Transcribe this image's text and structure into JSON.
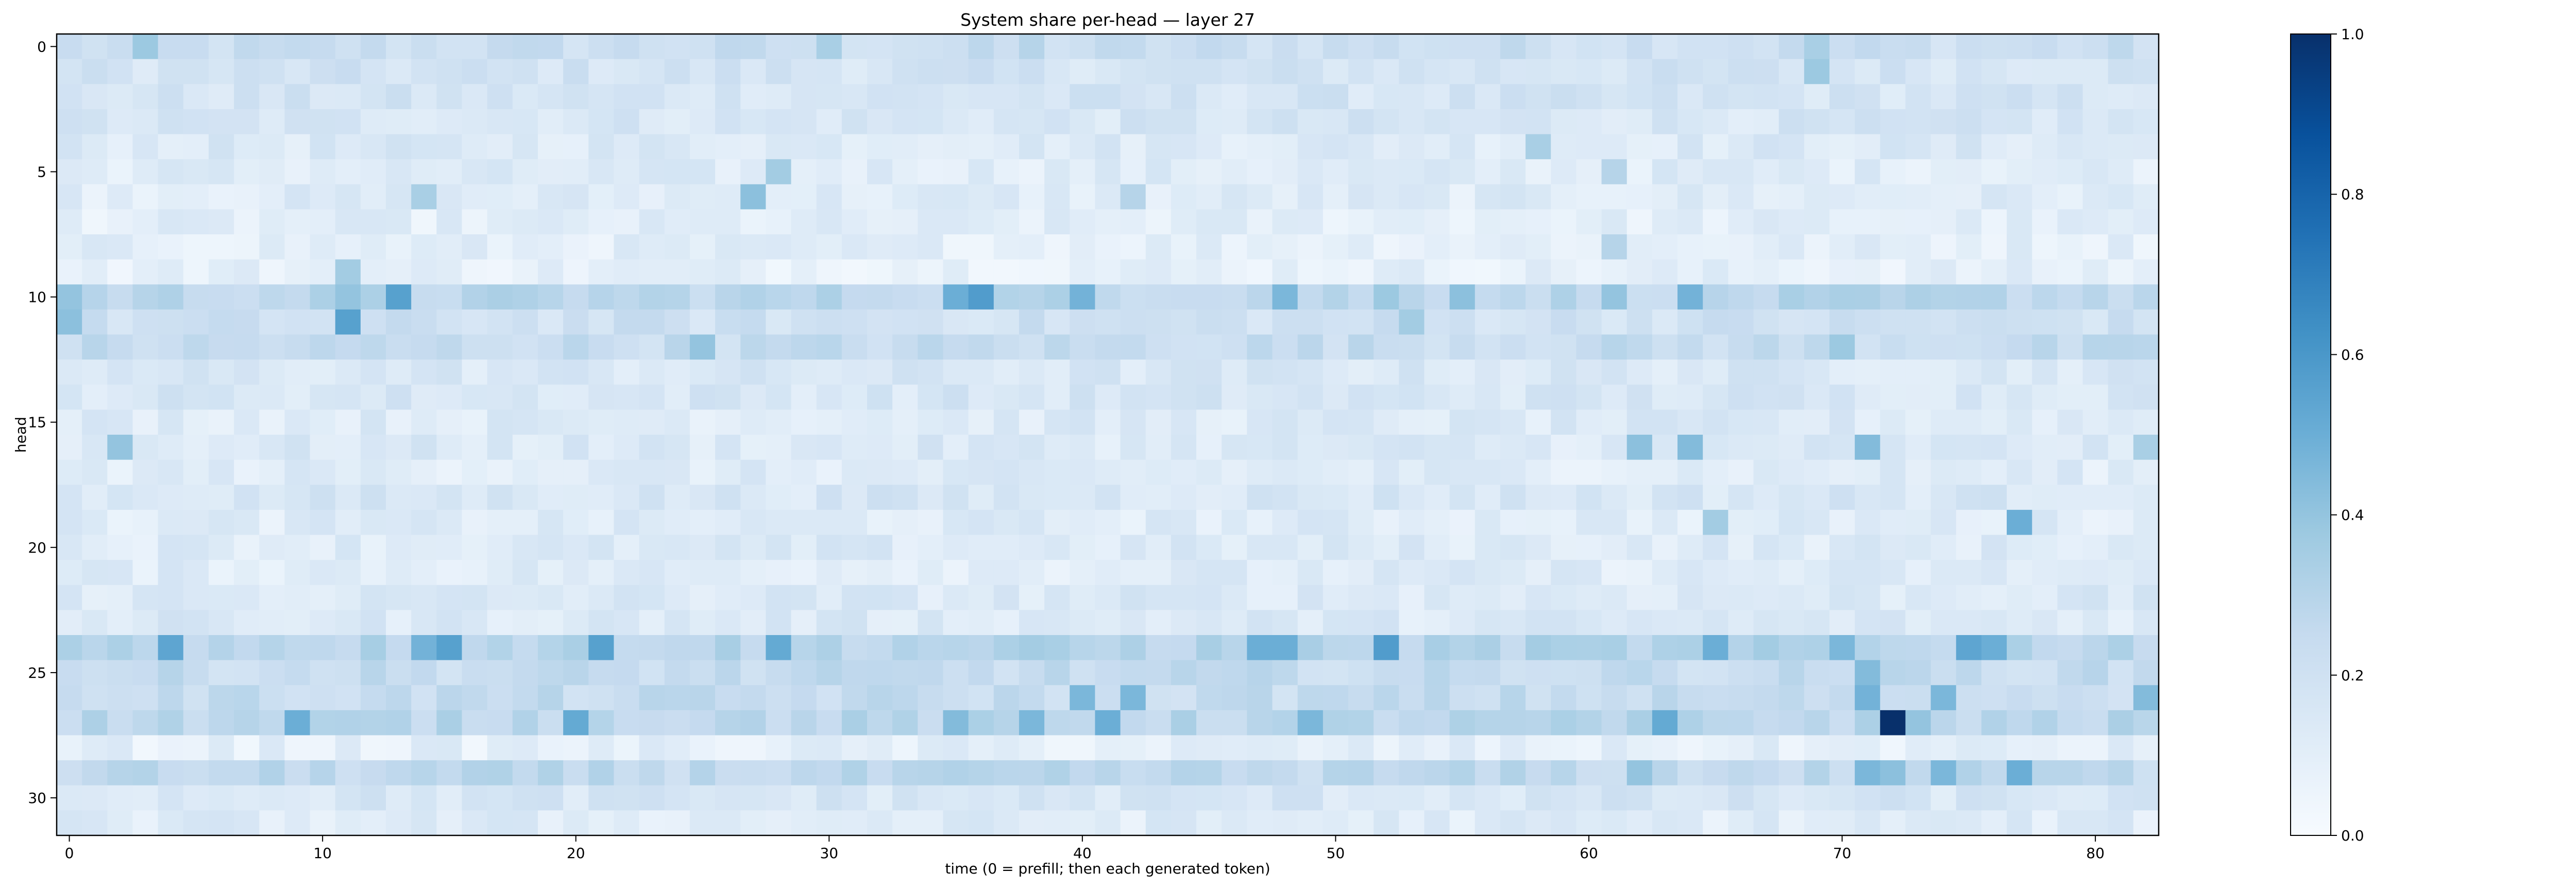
{
  "chart_data": {
    "type": "heatmap",
    "title": "System share per-head — layer 27",
    "xlabel": "time (0 = prefill; then each generated token)",
    "ylabel": "head",
    "n_cols": 83,
    "n_rows": 32,
    "x_ticks": [
      0,
      10,
      20,
      30,
      40,
      50,
      60,
      70,
      80
    ],
    "y_ticks": [
      0,
      5,
      10,
      15,
      20,
      25,
      30
    ],
    "colorbar": {
      "min": 0.0,
      "max": 1.0,
      "ticks": [
        "0.0",
        "0.2",
        "0.4",
        "0.6",
        "0.8",
        "1.0"
      ]
    },
    "colormap": "Blues",
    "row_base": [
      0.22,
      0.18,
      0.17,
      0.16,
      0.14,
      0.12,
      0.12,
      0.1,
      0.1,
      0.09,
      0.28,
      0.2,
      0.24,
      0.15,
      0.16,
      0.13,
      0.14,
      0.12,
      0.16,
      0.12,
      0.13,
      0.12,
      0.14,
      0.14,
      0.3,
      0.24,
      0.24,
      0.28,
      0.09,
      0.26,
      0.16,
      0.12
    ],
    "highlights": [
      {
        "row": 0,
        "col": 3,
        "v": 0.38
      },
      {
        "row": 0,
        "col": 30,
        "v": 0.34
      },
      {
        "row": 0,
        "col": 38,
        "v": 0.3
      },
      {
        "row": 0,
        "col": 69,
        "v": 0.34
      },
      {
        "row": 1,
        "col": 69,
        "v": 0.38
      },
      {
        "row": 4,
        "col": 58,
        "v": 0.34
      },
      {
        "row": 5,
        "col": 28,
        "v": 0.36
      },
      {
        "row": 5,
        "col": 61,
        "v": 0.3
      },
      {
        "row": 6,
        "col": 14,
        "v": 0.34
      },
      {
        "row": 6,
        "col": 27,
        "v": 0.42
      },
      {
        "row": 6,
        "col": 42,
        "v": 0.3
      },
      {
        "row": 8,
        "col": 61,
        "v": 0.3
      },
      {
        "row": 9,
        "col": 11,
        "v": 0.36
      },
      {
        "row": 10,
        "col": 0,
        "v": 0.4
      },
      {
        "row": 10,
        "col": 11,
        "v": 0.4
      },
      {
        "row": 10,
        "col": 13,
        "v": 0.56
      },
      {
        "row": 10,
        "col": 35,
        "v": 0.5
      },
      {
        "row": 10,
        "col": 36,
        "v": 0.58
      },
      {
        "row": 10,
        "col": 40,
        "v": 0.48
      },
      {
        "row": 10,
        "col": 48,
        "v": 0.46
      },
      {
        "row": 10,
        "col": 52,
        "v": 0.38
      },
      {
        "row": 10,
        "col": 55,
        "v": 0.42
      },
      {
        "row": 10,
        "col": 61,
        "v": 0.4
      },
      {
        "row": 10,
        "col": 64,
        "v": 0.48
      },
      {
        "row": 11,
        "col": 0,
        "v": 0.42
      },
      {
        "row": 11,
        "col": 11,
        "v": 0.56
      },
      {
        "row": 11,
        "col": 53,
        "v": 0.36
      },
      {
        "row": 12,
        "col": 25,
        "v": 0.4
      },
      {
        "row": 12,
        "col": 70,
        "v": 0.38
      },
      {
        "row": 16,
        "col": 2,
        "v": 0.4
      },
      {
        "row": 16,
        "col": 62,
        "v": 0.42
      },
      {
        "row": 16,
        "col": 64,
        "v": 0.44
      },
      {
        "row": 16,
        "col": 71,
        "v": 0.44
      },
      {
        "row": 16,
        "col": 82,
        "v": 0.34
      },
      {
        "row": 19,
        "col": 65,
        "v": 0.36
      },
      {
        "row": 19,
        "col": 77,
        "v": 0.5
      },
      {
        "row": 24,
        "col": 4,
        "v": 0.54
      },
      {
        "row": 24,
        "col": 14,
        "v": 0.48
      },
      {
        "row": 24,
        "col": 15,
        "v": 0.56
      },
      {
        "row": 24,
        "col": 21,
        "v": 0.56
      },
      {
        "row": 24,
        "col": 28,
        "v": 0.52
      },
      {
        "row": 24,
        "col": 47,
        "v": 0.5
      },
      {
        "row": 24,
        "col": 48,
        "v": 0.5
      },
      {
        "row": 24,
        "col": 52,
        "v": 0.58
      },
      {
        "row": 24,
        "col": 65,
        "v": 0.5
      },
      {
        "row": 24,
        "col": 70,
        "v": 0.46
      },
      {
        "row": 24,
        "col": 75,
        "v": 0.54
      },
      {
        "row": 24,
        "col": 76,
        "v": 0.5
      },
      {
        "row": 25,
        "col": 71,
        "v": 0.44
      },
      {
        "row": 26,
        "col": 40,
        "v": 0.46
      },
      {
        "row": 26,
        "col": 42,
        "v": 0.46
      },
      {
        "row": 26,
        "col": 71,
        "v": 0.48
      },
      {
        "row": 26,
        "col": 74,
        "v": 0.46
      },
      {
        "row": 26,
        "col": 82,
        "v": 0.44
      },
      {
        "row": 27,
        "col": 9,
        "v": 0.5
      },
      {
        "row": 27,
        "col": 20,
        "v": 0.52
      },
      {
        "row": 27,
        "col": 35,
        "v": 0.44
      },
      {
        "row": 27,
        "col": 38,
        "v": 0.46
      },
      {
        "row": 27,
        "col": 41,
        "v": 0.5
      },
      {
        "row": 27,
        "col": 49,
        "v": 0.46
      },
      {
        "row": 27,
        "col": 63,
        "v": 0.52
      },
      {
        "row": 27,
        "col": 72,
        "v": 1.0
      },
      {
        "row": 27,
        "col": 73,
        "v": 0.4
      },
      {
        "row": 29,
        "col": 62,
        "v": 0.4
      },
      {
        "row": 29,
        "col": 71,
        "v": 0.46
      },
      {
        "row": 29,
        "col": 72,
        "v": 0.42
      },
      {
        "row": 29,
        "col": 74,
        "v": 0.46
      },
      {
        "row": 29,
        "col": 77,
        "v": 0.5
      }
    ]
  }
}
